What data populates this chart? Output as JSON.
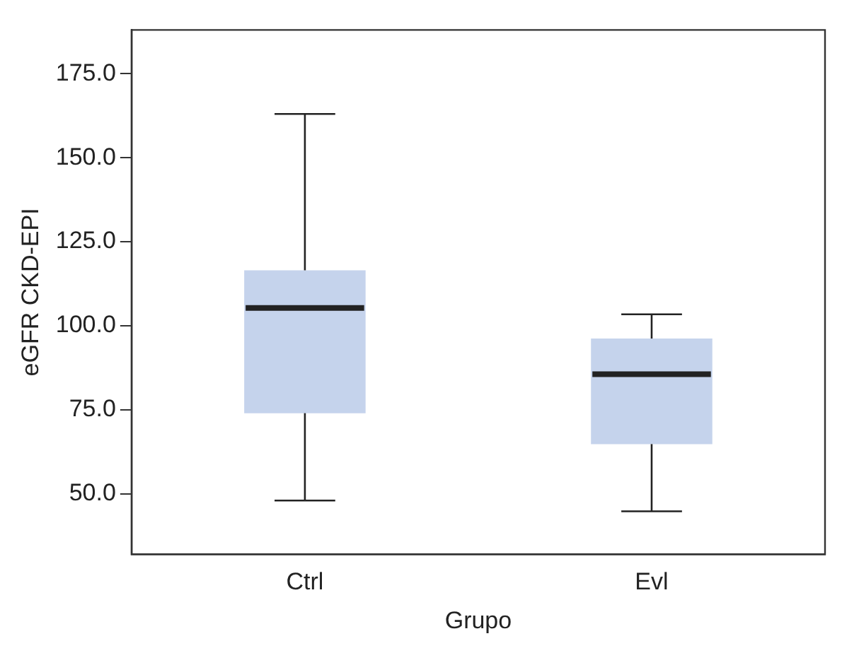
{
  "chart_data": {
    "type": "box",
    "xlabel": "Grupo",
    "ylabel": "eGFR CKD-EPI",
    "categories": [
      "Ctrl",
      "Evl"
    ],
    "boxes": [
      {
        "low": 48,
        "q1": 74,
        "median": 105.3,
        "q3": 116.5,
        "high": 163
      },
      {
        "low": 44.8,
        "q1": 64.8,
        "median": 85.6,
        "q3": 96.2,
        "high": 103.4
      }
    ],
    "color": "#c5d3ec",
    "ylim": [
      32,
      188
    ],
    "yticks": [
      {
        "value": 50,
        "label": "50.0"
      },
      {
        "value": 75,
        "label": "75.0"
      },
      {
        "value": 100,
        "label": "100.0"
      },
      {
        "value": 125,
        "label": "125.0"
      },
      {
        "value": 150,
        "label": "150.0"
      },
      {
        "value": 175,
        "label": "175.0"
      }
    ],
    "grid": false,
    "legend": false
  }
}
